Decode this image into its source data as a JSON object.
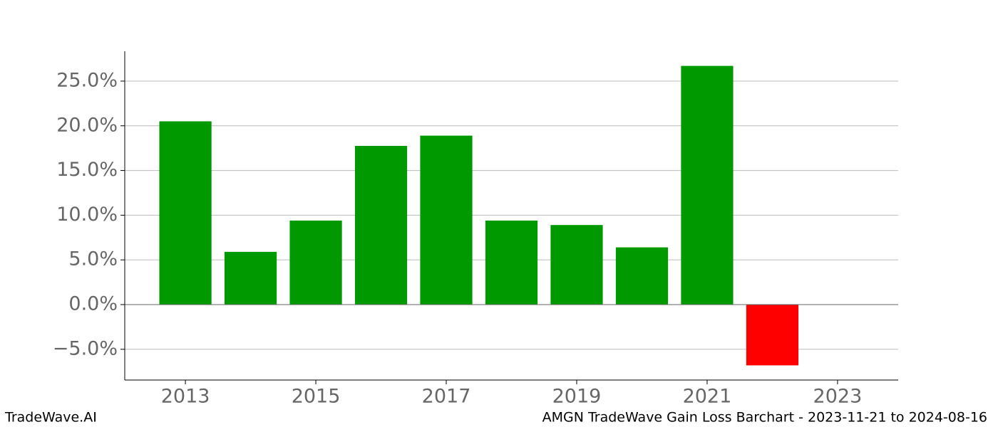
{
  "chart_data": {
    "type": "bar",
    "x": [
      2013,
      2014,
      2015,
      2016,
      2017,
      2018,
      2019,
      2020,
      2021,
      2022
    ],
    "values": [
      20.5,
      5.9,
      9.4,
      17.75,
      18.9,
      9.4,
      8.9,
      6.4,
      26.7,
      -6.8
    ],
    "colors": [
      "#009900",
      "#009900",
      "#009900",
      "#009900",
      "#009900",
      "#009900",
      "#009900",
      "#009900",
      "#009900",
      "#ff0000"
    ],
    "xlim": [
      2012.07,
      2023.93
    ],
    "xticks": [
      2013,
      2015,
      2017,
      2019,
      2021,
      2023
    ],
    "ylim": [
      -8.44,
      28.34
    ],
    "yticks": [
      {
        "value": -5,
        "label": "−5.0%"
      },
      {
        "value": 0,
        "label": "0.0%"
      },
      {
        "value": 5,
        "label": "5.0%"
      },
      {
        "value": 10,
        "label": "10.0%"
      },
      {
        "value": 15,
        "label": "15.0%"
      },
      {
        "value": 20,
        "label": "20.0%"
      },
      {
        "value": 25,
        "label": "25.0%"
      }
    ],
    "grid": true,
    "footer_left": "TradeWave.AI",
    "footer_right": "AMGN TradeWave Gain Loss Barchart - 2023-11-21 to 2024-08-16"
  }
}
